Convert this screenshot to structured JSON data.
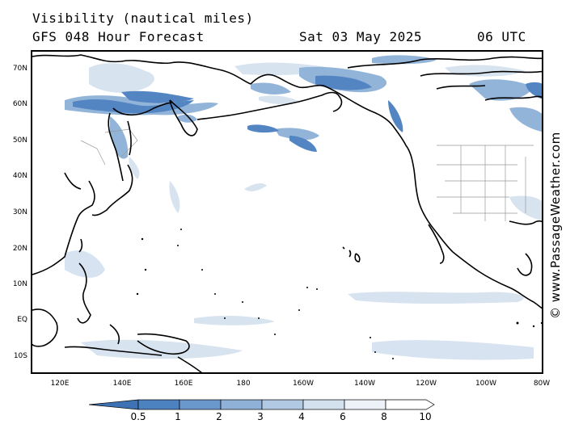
{
  "header": {
    "variable": "Visibility (nautical miles)",
    "model": "GFS 048 Hour Forecast",
    "date": "Sat 03 May 2025",
    "time": "06 UTC"
  },
  "credit": "© www.PassageWeather.com",
  "axes": {
    "lat_labels": [
      "70N",
      "60N",
      "50N",
      "40N",
      "30N",
      "20N",
      "10N",
      "EQ",
      "10S"
    ],
    "lon_labels": [
      "120E",
      "140E",
      "160E",
      "180",
      "160W",
      "140W",
      "120W",
      "100W",
      "80W"
    ]
  },
  "legend": {
    "ticks": [
      "0.5",
      "1",
      "2",
      "3",
      "4",
      "6",
      "8",
      "10"
    ],
    "colors": [
      "#3d73b4",
      "#4d82c0",
      "#6b98cc",
      "#8fb1d8",
      "#b2c9e4",
      "#d3e0ee",
      "#edf2f8"
    ]
  },
  "colors": {
    "land_outline": "#000000",
    "state_lines": "#999999",
    "low_vis": "#4a7fc0",
    "mid_vis": "#8eb0d8",
    "high_vis": "#d6e2f0"
  }
}
